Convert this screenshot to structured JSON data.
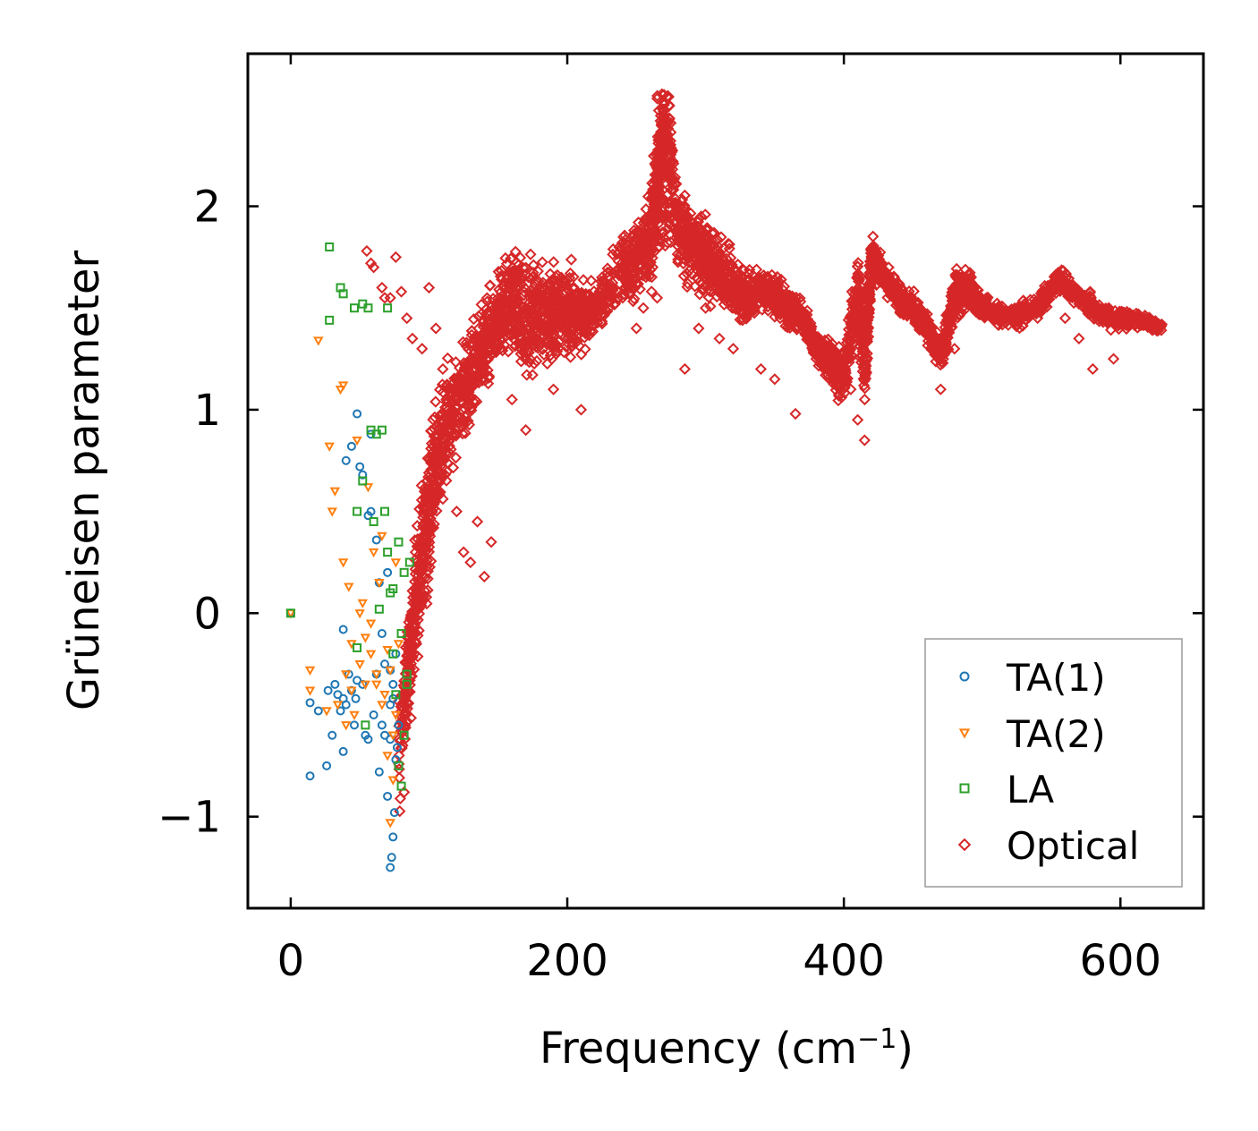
{
  "chart_data": {
    "type": "scatter",
    "xlabel": "Frequency (cm",
    "xlabel_sup": "−1",
    "xlabel_suffix": ")",
    "ylabel": "Grüneisen parameter",
    "xlim": [
      -31,
      660
    ],
    "ylim": [
      -1.45,
      2.75
    ],
    "xticks": [
      0,
      200,
      400,
      600
    ],
    "xtick_labels": [
      "0",
      "200",
      "400",
      "600"
    ],
    "yticks": [
      -1,
      0,
      1,
      2
    ],
    "ytick_labels": [
      "−1",
      "0",
      "1",
      "2"
    ],
    "grid": false,
    "legend_position": "bottom-right",
    "series": [
      {
        "name": "TA(1)",
        "color": "#1f77b4",
        "marker": "circle",
        "x": [
          0,
          14,
          14,
          20,
          26,
          27,
          30,
          32,
          34,
          36,
          38,
          38,
          40,
          42,
          44,
          46,
          47,
          48,
          50,
          52,
          54,
          56,
          58,
          60,
          62,
          64,
          66,
          68,
          70,
          72,
          73,
          74,
          75,
          76,
          77,
          78,
          48,
          52,
          58,
          62,
          64,
          66,
          70,
          72,
          72,
          74,
          76,
          68,
          72,
          74,
          40,
          44,
          38,
          56
        ],
        "y": [
          0.0,
          -0.8,
          -0.44,
          -0.48,
          -0.75,
          -0.38,
          -0.6,
          -0.35,
          -0.4,
          -0.48,
          -0.68,
          -0.42,
          -0.45,
          -0.3,
          -0.38,
          -0.55,
          -0.42,
          0.98,
          0.72,
          -0.35,
          -0.6,
          -0.62,
          0.88,
          -0.5,
          -0.3,
          -0.78,
          -0.55,
          -0.25,
          -0.9,
          -1.25,
          -1.2,
          -1.1,
          -0.98,
          -0.72,
          -0.66,
          -0.55,
          -0.33,
          0.68,
          0.5,
          0.36,
          0.15,
          -0.1,
          0.2,
          -0.28,
          -0.62,
          -0.42,
          -0.2,
          -0.6,
          -0.45,
          -0.35,
          0.75,
          0.82,
          -0.08,
          0.48
        ]
      },
      {
        "name": "TA(2)",
        "color": "#ff7f0e",
        "marker": "triangle",
        "x": [
          0,
          14,
          14,
          20,
          26,
          28,
          30,
          32,
          34,
          36,
          38,
          40,
          42,
          44,
          46,
          48,
          50,
          52,
          54,
          56,
          58,
          60,
          62,
          64,
          66,
          68,
          70,
          72,
          74,
          76,
          78,
          38,
          40,
          44,
          50,
          54,
          58,
          62,
          66,
          70,
          72,
          74,
          76
        ],
        "y": [
          0.0,
          -0.28,
          -0.38,
          1.34,
          -0.48,
          0.82,
          0.5,
          0.6,
          -0.45,
          1.1,
          0.25,
          -0.3,
          0.13,
          -0.38,
          -0.5,
          0.85,
          0.0,
          0.05,
          -0.12,
          0.62,
          -0.2,
          0.3,
          -0.35,
          0.15,
          0.38,
          -0.4,
          -0.7,
          -1.03,
          -0.82,
          -0.5,
          -0.15,
          1.12,
          -0.55,
          -0.15,
          -0.25,
          -0.35,
          -0.05,
          -0.3,
          -0.45,
          -0.18,
          -0.28,
          -0.6,
          0.25
        ]
      },
      {
        "name": "LA",
        "color": "#2ca02c",
        "marker": "square",
        "x": [
          0,
          28,
          28,
          36,
          38,
          46,
          48,
          52,
          56,
          58,
          62,
          66,
          68,
          70,
          72,
          74,
          76,
          78,
          80,
          82,
          84,
          48,
          52,
          54,
          60,
          64,
          70,
          74,
          78,
          80,
          82,
          84,
          86
        ],
        "y": [
          0.0,
          1.8,
          1.44,
          1.6,
          1.57,
          1.5,
          -0.17,
          1.52,
          1.5,
          0.9,
          0.88,
          0.9,
          0.5,
          0.3,
          0.1,
          -0.2,
          -0.4,
          -0.75,
          -0.85,
          -0.6,
          -0.3,
          0.5,
          0.65,
          -0.55,
          0.45,
          0.02,
          1.5,
          0.12,
          0.35,
          -0.1,
          0.2,
          -0.35,
          0.25
        ]
      },
      {
        "name": "Optical",
        "color": "#d62728",
        "marker": "diamond",
        "x": [],
        "y": [],
        "path_x": [
          80,
          90,
          100,
          110,
          120,
          130,
          140,
          150,
          160,
          170,
          180,
          190,
          200,
          210,
          220,
          240,
          250,
          260,
          265,
          270,
          280,
          290,
          300,
          310,
          320,
          330,
          340,
          350,
          360,
          370,
          380,
          390,
          400,
          410,
          415,
          420,
          430,
          440,
          450,
          460,
          470,
          480,
          490,
          500,
          520,
          540,
          555,
          570,
          590,
          610,
          630
        ],
        "path_y": [
          -0.6,
          0.1,
          0.55,
          0.85,
          1.05,
          1.15,
          1.3,
          1.45,
          1.55,
          1.45,
          1.5,
          1.45,
          1.5,
          1.45,
          1.5,
          1.7,
          1.75,
          1.8,
          2.1,
          2.45,
          1.9,
          1.8,
          1.75,
          1.7,
          1.6,
          1.55,
          1.6,
          1.55,
          1.5,
          1.45,
          1.3,
          1.25,
          1.15,
          1.6,
          1.2,
          1.75,
          1.65,
          1.55,
          1.5,
          1.4,
          1.25,
          1.55,
          1.6,
          1.5,
          1.45,
          1.5,
          1.65,
          1.55,
          1.45,
          1.45,
          1.4
        ],
        "path_spread": [
          0.25,
          0.4,
          0.5,
          0.45,
          0.35,
          0.35,
          0.35,
          0.3,
          0.35,
          0.45,
          0.4,
          0.4,
          0.3,
          0.25,
          0.15,
          0.25,
          0.3,
          0.35,
          0.35,
          0.2,
          0.3,
          0.3,
          0.3,
          0.25,
          0.2,
          0.2,
          0.15,
          0.15,
          0.15,
          0.1,
          0.1,
          0.15,
          0.2,
          0.3,
          0.3,
          0.2,
          0.1,
          0.1,
          0.1,
          0.1,
          0.1,
          0.2,
          0.15,
          0.1,
          0.08,
          0.1,
          0.08,
          0.07,
          0.1,
          0.06,
          0.04
        ],
        "extra_x": [
          55,
          58,
          60,
          66,
          68,
          72,
          76,
          80,
          84,
          88,
          95,
          100,
          105,
          110,
          115,
          120,
          125,
          130,
          135,
          140,
          145,
          160,
          170,
          190,
          210,
          225,
          240,
          250,
          255,
          265,
          285,
          295,
          300,
          310,
          320,
          340,
          350,
          365,
          380,
          390,
          405,
          410,
          415,
          460,
          470,
          480,
          560,
          570,
          580,
          595
        ],
        "extra_y": [
          1.78,
          1.72,
          1.7,
          1.6,
          1.55,
          1.55,
          1.75,
          1.58,
          1.45,
          1.35,
          1.3,
          1.6,
          1.4,
          1.2,
          0.9,
          0.5,
          0.3,
          0.25,
          0.45,
          0.18,
          0.35,
          1.05,
          0.9,
          1.1,
          1.0,
          1.65,
          1.55,
          1.4,
          1.5,
          1.55,
          1.2,
          1.4,
          1.5,
          1.35,
          1.3,
          1.2,
          1.15,
          0.98,
          1.25,
          1.2,
          1.1,
          0.95,
          0.85,
          1.4,
          1.1,
          1.3,
          1.45,
          1.35,
          1.2,
          1.25
        ]
      }
    ]
  }
}
